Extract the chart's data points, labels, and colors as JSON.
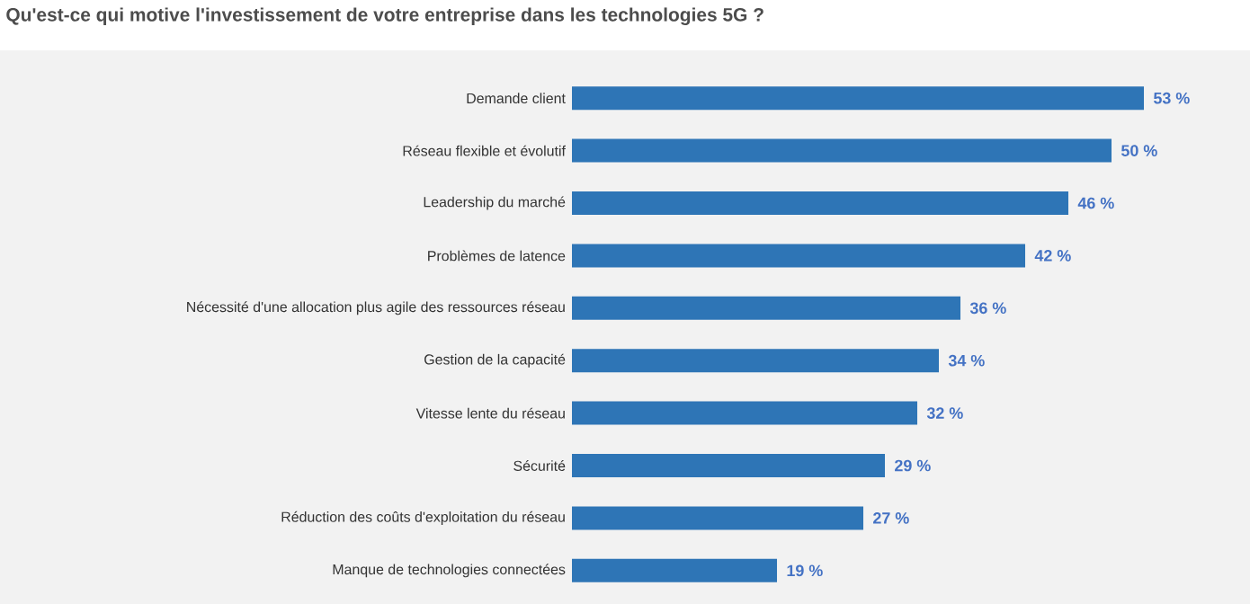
{
  "chart_data": {
    "type": "bar",
    "orientation": "horizontal",
    "title": "Qu'est-ce qui motive l'investissement de votre entreprise dans les technologies 5G ?",
    "categories": [
      "Demande client",
      "Réseau flexible et évolutif",
      "Leadership du marché",
      "Problèmes de latence",
      "Nécessité d'une allocation plus agile des ressources réseau",
      "Gestion de la capacité",
      "Vitesse lente du réseau",
      "Sécurité",
      "Réduction des coûts d'exploitation du réseau",
      "Manque de technologies connectées"
    ],
    "values": [
      53,
      50,
      46,
      42,
      36,
      34,
      32,
      29,
      27,
      19
    ],
    "value_labels": [
      "53 %",
      "50 %",
      "46 %",
      "42 %",
      "36 %",
      "34 %",
      "32 %",
      "29 %",
      "27 %",
      "19 %"
    ],
    "color": "#2e75b6"
  }
}
